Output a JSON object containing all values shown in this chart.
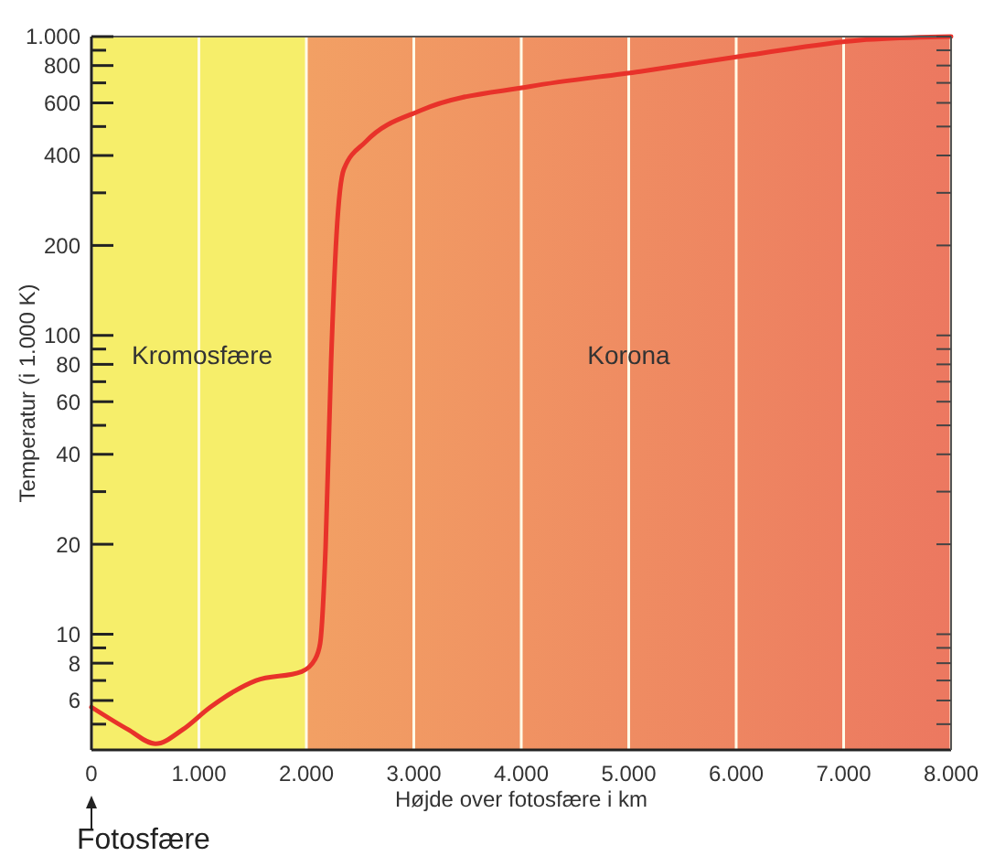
{
  "chart_data": {
    "type": "line",
    "xlabel": "Højde over fotosfære i km",
    "ylabel": "Temperatur (i 1.000 K)",
    "log": "y",
    "grid": "x",
    "marker": "none",
    "line_style": "solid",
    "xlim": [
      0,
      8000
    ],
    "ylim": [
      4.1,
      1000
    ],
    "xticks": [
      0,
      {
        "value": 1000,
        "label": "1.000"
      },
      {
        "value": 2000,
        "label": "2.000"
      },
      {
        "value": 3000,
        "label": "3.000"
      },
      {
        "value": 4000,
        "label": "4.000"
      },
      {
        "value": 5000,
        "label": "5.000"
      },
      {
        "value": 6000,
        "label": "6.000"
      },
      {
        "value": 7000,
        "label": "7.000"
      },
      {
        "value": 8000,
        "label": "8.000"
      }
    ],
    "yticks": [
      {
        "value": 5,
        "label": null
      },
      6,
      {
        "value": 7,
        "label": null
      },
      8,
      {
        "value": 9,
        "label": null
      },
      10,
      20,
      {
        "value": 30,
        "label": null
      },
      40,
      {
        "value": 50,
        "label": null
      },
      60,
      {
        "value": 70,
        "label": null
      },
      80,
      {
        "value": 90,
        "label": null
      },
      100,
      200,
      {
        "value": 300,
        "label": null
      },
      400,
      {
        "value": 500,
        "label": null
      },
      600,
      {
        "value": 700,
        "label": null
      },
      800,
      {
        "value": 900,
        "label": null
      },
      {
        "value": 1000,
        "label": "1.000"
      }
    ],
    "bands": [
      {
        "axis": "x",
        "from": 0,
        "to": 2000,
        "label": "Kromosfære",
        "color": "#f6ee6a"
      },
      {
        "axis": "x",
        "from": 2000,
        "to": 8000,
        "label": "Korona",
        "color": "#f2a064"
      }
    ],
    "annotations": [
      "Fotosfære"
    ],
    "series": [
      {
        "color": "#e8322a",
        "x": [
          0,
          340,
          596,
          851,
          1106,
          1532,
          1957,
          2077,
          2128,
          2179,
          2230,
          2281,
          2349,
          2553,
          3064,
          4085,
          5106,
          6128,
          7149,
          8000
        ],
        "values": [
          5.7,
          4.8,
          4.3,
          4.8,
          5.7,
          7.0,
          7.5,
          8.2,
          9.3,
          19.5,
          81,
          218,
          360,
          445,
          566,
          681,
          764,
          868,
          973,
          1000
        ]
      }
    ]
  }
}
